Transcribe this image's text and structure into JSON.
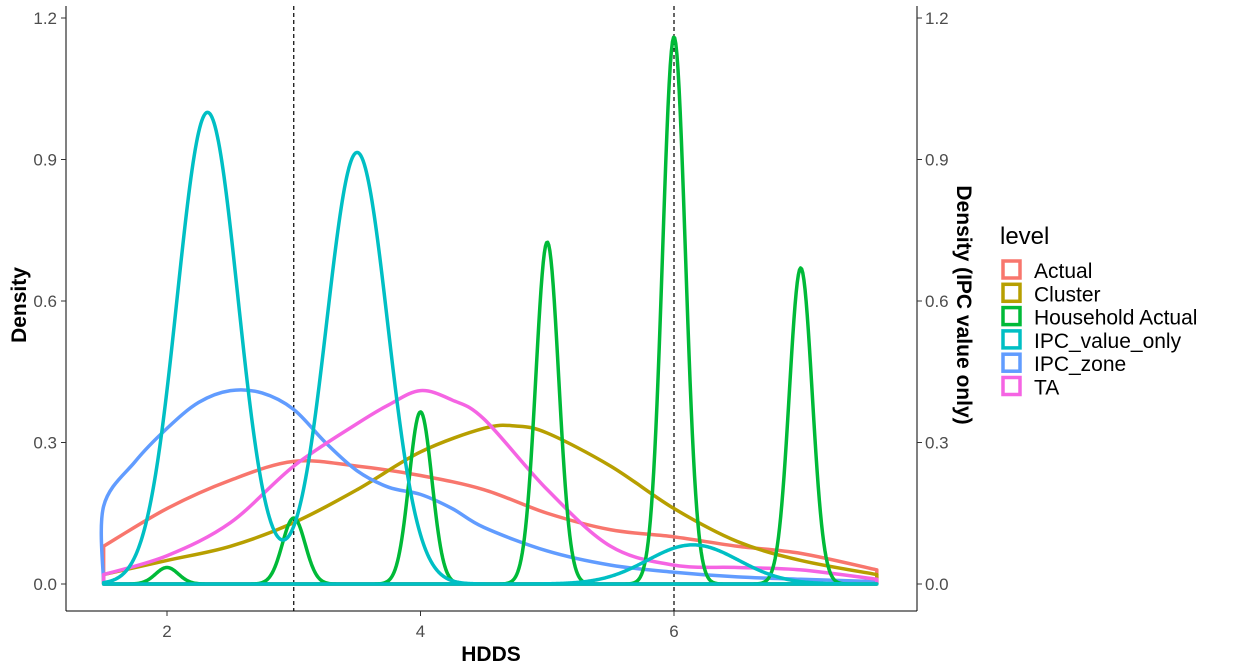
{
  "chart_data": {
    "type": "line",
    "subtype": "density",
    "title": "",
    "xlabel": "HDDS",
    "ylabel": "Density",
    "ylabel_right": "Density (IPC value only)",
    "xlim": [
      1.5,
      7.6
    ],
    "ylim": [
      0.0,
      1.2
    ],
    "x_ticks": [
      2,
      4,
      6
    ],
    "x_tick_labels": [
      "2",
      "4",
      "6"
    ],
    "y_ticks": [
      0.0,
      0.3,
      0.6,
      0.9,
      1.2
    ],
    "y_tick_labels": [
      "0.0",
      "0.3",
      "0.6",
      "0.9",
      "1.2"
    ],
    "y_ticks_right": [
      0.0,
      0.3,
      0.6,
      0.9,
      1.2
    ],
    "y_tick_labels_right": [
      "0.0",
      "0.3",
      "0.6",
      "0.9",
      "1.2"
    ],
    "vlines": [
      3,
      6
    ],
    "vline_style": "dashed",
    "grid": false,
    "legend": {
      "title": "level",
      "placement": "right"
    },
    "series": [
      {
        "name": "Actual",
        "color": "#F8766D",
        "x": [
          1.5,
          2.0,
          2.5,
          3.0,
          3.5,
          4.0,
          4.5,
          5.0,
          5.5,
          6.0,
          6.5,
          7.0,
          7.6
        ],
        "y": [
          0.08,
          0.16,
          0.22,
          0.26,
          0.25,
          0.23,
          0.2,
          0.15,
          0.115,
          0.1,
          0.08,
          0.065,
          0.03
        ]
      },
      {
        "name": "Cluster",
        "color": "#B79F00",
        "x": [
          1.5,
          2.0,
          2.5,
          3.0,
          3.5,
          4.0,
          4.5,
          4.75,
          5.0,
          5.5,
          6.0,
          6.5,
          7.0,
          7.6
        ],
        "y": [
          0.02,
          0.05,
          0.08,
          0.13,
          0.2,
          0.28,
          0.33,
          0.335,
          0.32,
          0.25,
          0.16,
          0.09,
          0.05,
          0.02
        ]
      },
      {
        "name": "Household Actual",
        "color": "#00BA38",
        "peaks": [
          {
            "x": 2.0,
            "height": 0.035,
            "width": 0.09
          },
          {
            "x": 3.0,
            "height": 0.14,
            "width": 0.09
          },
          {
            "x": 4.0,
            "height": 0.365,
            "width": 0.09
          },
          {
            "x": 5.0,
            "height": 0.725,
            "width": 0.09
          },
          {
            "x": 6.0,
            "height": 1.16,
            "width": 0.09
          },
          {
            "x": 7.0,
            "height": 0.67,
            "width": 0.09
          }
        ]
      },
      {
        "name": "IPC_value_only",
        "color": "#00BFC4",
        "peaks": [
          {
            "x": 2.32,
            "height": 1.0,
            "width": 0.24
          },
          {
            "x": 3.5,
            "height": 0.915,
            "width": 0.24
          },
          {
            "x": 6.15,
            "height": 0.083,
            "width": 0.36
          }
        ]
      },
      {
        "name": "IPC_zone",
        "color": "#619CFF",
        "x": [
          1.5,
          1.5,
          1.75,
          2.0,
          2.25,
          2.5,
          2.75,
          3.0,
          3.25,
          3.5,
          3.75,
          4.0,
          4.25,
          4.5,
          5.0,
          5.5,
          6.0,
          6.5,
          7.0,
          7.6
        ],
        "y": [
          0.0,
          0.165,
          0.26,
          0.33,
          0.385,
          0.41,
          0.405,
          0.37,
          0.3,
          0.24,
          0.205,
          0.19,
          0.16,
          0.12,
          0.07,
          0.04,
          0.025,
          0.015,
          0.01,
          0.005
        ]
      },
      {
        "name": "TA",
        "color": "#F564E3",
        "x": [
          1.5,
          2.0,
          2.5,
          3.0,
          3.5,
          3.75,
          4.0,
          4.25,
          4.5,
          5.0,
          5.5,
          6.0,
          6.5,
          7.0,
          7.6
        ],
        "y": [
          0.02,
          0.06,
          0.13,
          0.25,
          0.34,
          0.38,
          0.41,
          0.39,
          0.35,
          0.2,
          0.08,
          0.04,
          0.035,
          0.03,
          0.01
        ]
      }
    ]
  }
}
